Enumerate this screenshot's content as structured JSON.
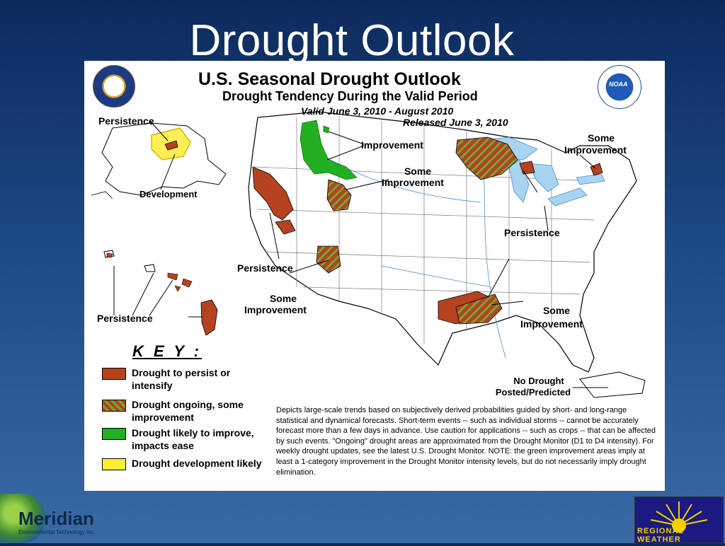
{
  "slide": {
    "title": "Drought Outlook"
  },
  "map": {
    "title": "U.S. Seasonal Drought Outlook",
    "subtitle": "Drought Tendency During the Valid Period",
    "valid": "Valid June 3, 2010 - August 2010",
    "released": "Released June 3, 2010",
    "labels": {
      "persistence_ak": "Persistence",
      "development_ak": "Development",
      "improvement_nw": "Improvement",
      "some_improvement_n": "Some",
      "some_improvement_n2": "Improvement",
      "some_improvement_ne": "Some",
      "some_improvement_ne2": "Improvement",
      "persistence_ne": "Persistence",
      "persistence_w": "Persistence",
      "some_improvement_sw": "Some",
      "some_improvement_sw2": "Improvement",
      "persistence_hi": "Persistence",
      "some_improvement_se": "Some",
      "some_improvement_se2": "Improvement",
      "no_drought_1": "No Drought",
      "no_drought_2": "Posted/Predicted"
    },
    "key": {
      "title": "K E Y :",
      "items": [
        {
          "label": "Drought to persist or intensify",
          "color": "#b5431f",
          "pattern": "solid"
        },
        {
          "label": "Drought ongoing, some improvement",
          "color": "#b5431f",
          "pattern": "hatched-green"
        },
        {
          "label": "Drought likely to improve, impacts ease",
          "color": "#22b022",
          "pattern": "solid"
        },
        {
          "label": "Drought development likely",
          "color": "#ffee33",
          "pattern": "solid"
        }
      ]
    },
    "note": "Depicts large-scale trends based on subjectively derived probabilities guided by short- and long-range statistical and dynamical forecasts. Short-term events -- such as individual storms -- cannot be accurately forecast more than a few days in advance. Use caution for applications -- such as crops -- that can be affected by such events. \"Ongoing\" drought areas are approximated from the Drought Monitor (D1 to D4 intensity). For weekly drought updates, see the latest U.S. Drought Monitor. NOTE: the green improvement areas imply at least a 1-category improvement in the Drought Monitor intensity levels, but do not necessarily imply drought elimination.",
    "seal_icon": "doc-seal-icon",
    "noaa_icon": "noaa-logo-icon",
    "noaa_text": "NOAA"
  },
  "footer": {
    "left_logo_name": "Meridian",
    "left_logo_sub": "Environmental Technology Inc.",
    "right_logo_text": "REGIONAL WEATHER"
  },
  "colors": {
    "persist": "#b5431f",
    "improve": "#22b022",
    "develop": "#ffee33",
    "water": "#a8d4f0"
  }
}
